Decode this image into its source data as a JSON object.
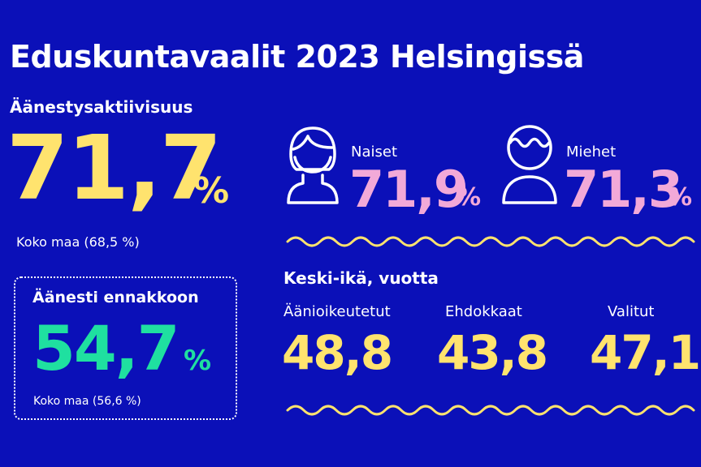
{
  "title": "Eduskuntavaalit 2023 Helsingissä",
  "turnout": {
    "heading": "Äänestysaktiivisuus",
    "value": "71,7",
    "unit": "%",
    "country_note": "Koko maa (68,5 %)"
  },
  "advance": {
    "heading": "Äänesti ennakkoon",
    "value": "54,7",
    "unit": "%",
    "country_note": "Koko maa (56,6 %)"
  },
  "women": {
    "label": "Naiset",
    "value": "71,9",
    "unit": "%",
    "icon": "woman-icon"
  },
  "men": {
    "label": "Miehet",
    "value": "71,3",
    "unit": "%",
    "icon": "man-icon"
  },
  "avg_age": {
    "heading": "Keski-ikä, vuotta",
    "items": [
      {
        "label": "Äänioikeutetut",
        "value": "48,8"
      },
      {
        "label": "Ehdokkaat",
        "value": "43,8"
      },
      {
        "label": "Valitut",
        "value": "47,1"
      }
    ]
  },
  "colors": {
    "background": "#0b10b8",
    "yellow": "#ffe36e",
    "pink": "#f2a9d8",
    "green": "#1fe0a0"
  }
}
